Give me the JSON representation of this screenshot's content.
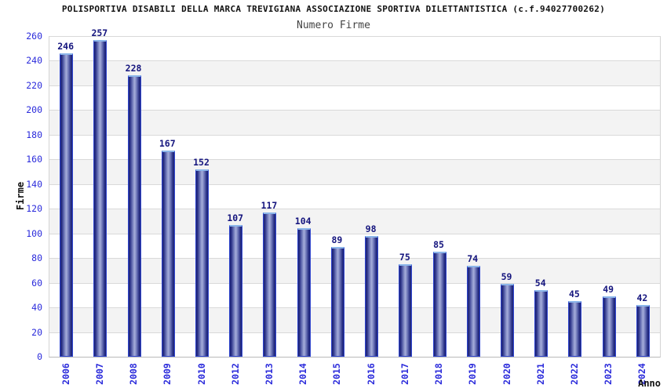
{
  "header": {
    "title": "POLISPORTIVA DISABILI DELLA MARCA TREVIGIANA ASSOCIAZIONE SPORTIVA DILETTANTISTICA (c.f.94027700262)",
    "subtitle": "Numero Firme"
  },
  "chart_data": {
    "type": "bar",
    "title": "Numero Firme",
    "categories": [
      "2006",
      "2007",
      "2008",
      "2009",
      "2010",
      "2012",
      "2013",
      "2014",
      "2015",
      "2016",
      "2017",
      "2018",
      "2019",
      "2020",
      "2021",
      "2022",
      "2023",
      "2024"
    ],
    "values": [
      246,
      257,
      228,
      167,
      152,
      107,
      117,
      104,
      89,
      98,
      75,
      85,
      74,
      59,
      54,
      45,
      49,
      42
    ],
    "xlabel": "Anno",
    "ylabel": "Firme",
    "ylim": [
      0,
      260
    ],
    "ytick_step": 20,
    "grid": true,
    "grid_bands_alternating": true,
    "legend_position": "none",
    "bar_value_labels": true
  },
  "colors": {
    "tick_label": "#2b2bdb",
    "value_label": "#15157e",
    "band_alt": "#f3f3f3",
    "band_main": "#ffffff",
    "grid_line": "#d9d9d9",
    "bar_dark": "#1c2273",
    "bar_light": "#9ba3d4",
    "bar_edge": "#2f45cf",
    "bar_cap": "#8cb6ea"
  }
}
